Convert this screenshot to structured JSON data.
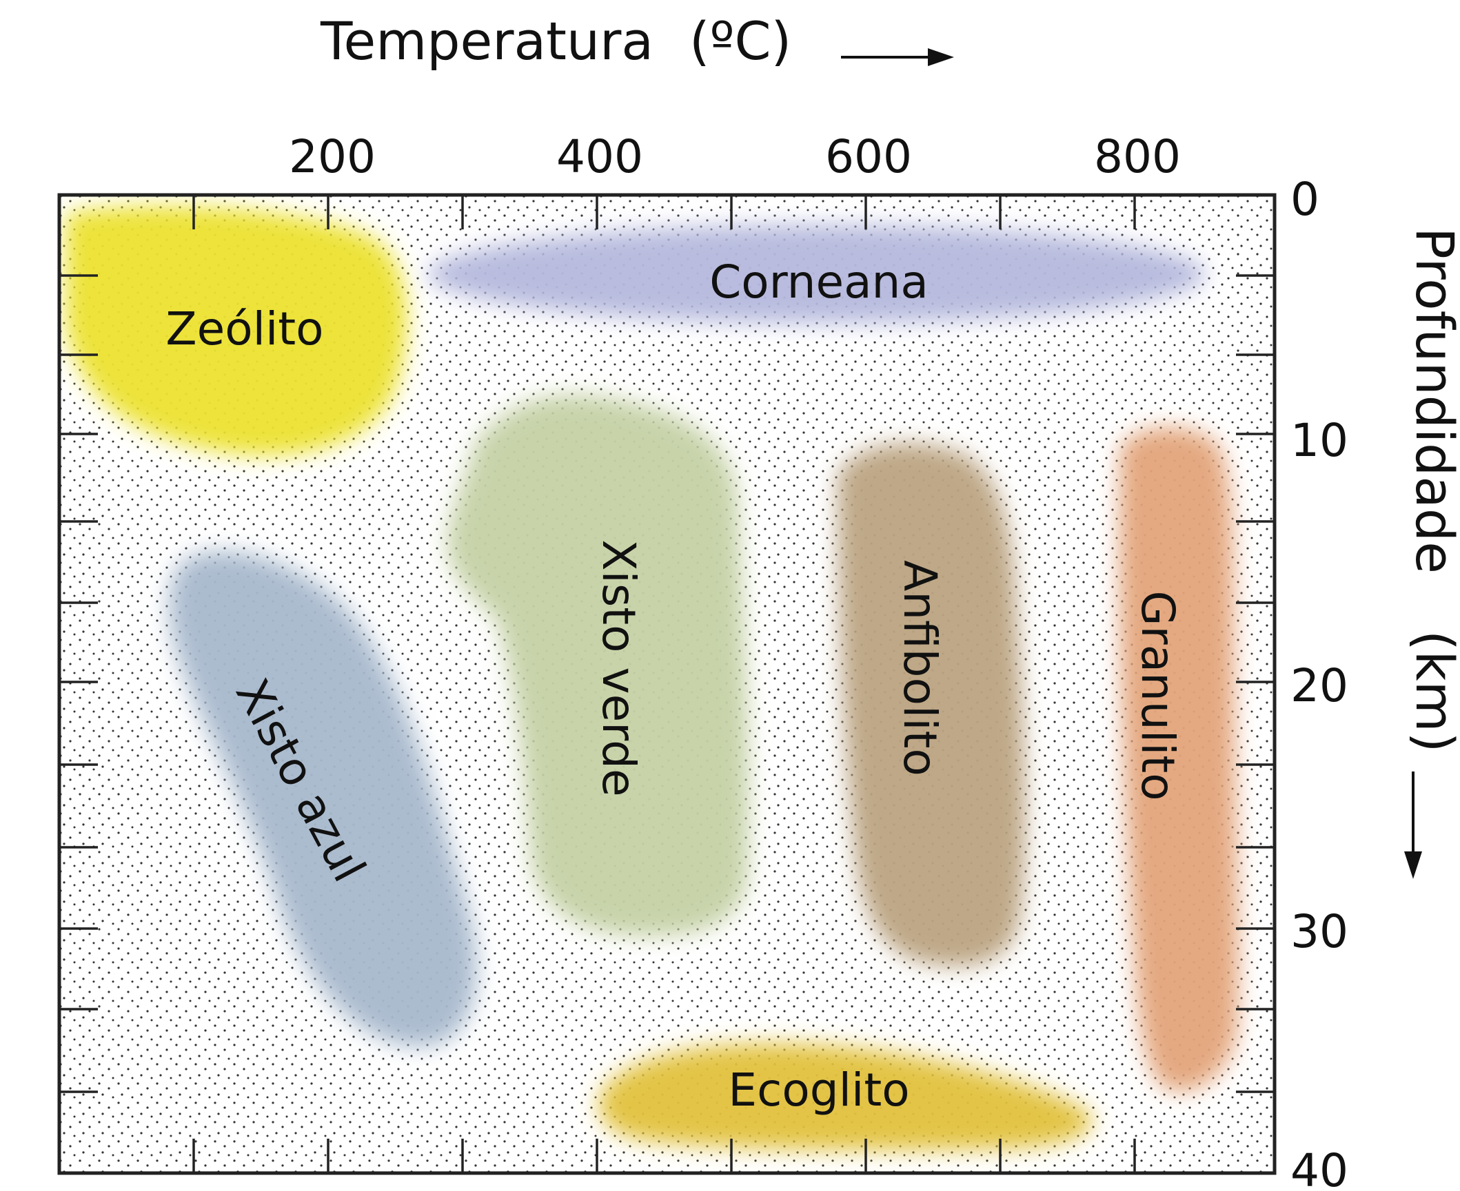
{
  "axes": {
    "x_title": "Temperatura",
    "x_unit": "(ºC)",
    "y_title": "Profundidade",
    "y_unit": "(km)",
    "x_ticks": [
      "200",
      "400",
      "600",
      "800"
    ],
    "y_ticks": [
      "0",
      "10",
      "20",
      "30",
      "40"
    ]
  },
  "facies": [
    {
      "id": "zeolito",
      "label": "Zeólito",
      "color": "#ece230"
    },
    {
      "id": "corneana",
      "label": "Corneana",
      "color": "#b5b8dc"
    },
    {
      "id": "xisto-azul",
      "label": "Xisto azul",
      "color": "#a8b8cc"
    },
    {
      "id": "xisto-verde",
      "label": "Xisto verde",
      "color": "#c5d1a5"
    },
    {
      "id": "anfibolito",
      "label": "Anfibolito",
      "color": "#bba381"
    },
    {
      "id": "granulito",
      "label": "Granulito",
      "color": "#e3a47a"
    },
    {
      "id": "ecoglito",
      "label": "Ecoglito",
      "color": "#e2c13c"
    }
  ]
}
